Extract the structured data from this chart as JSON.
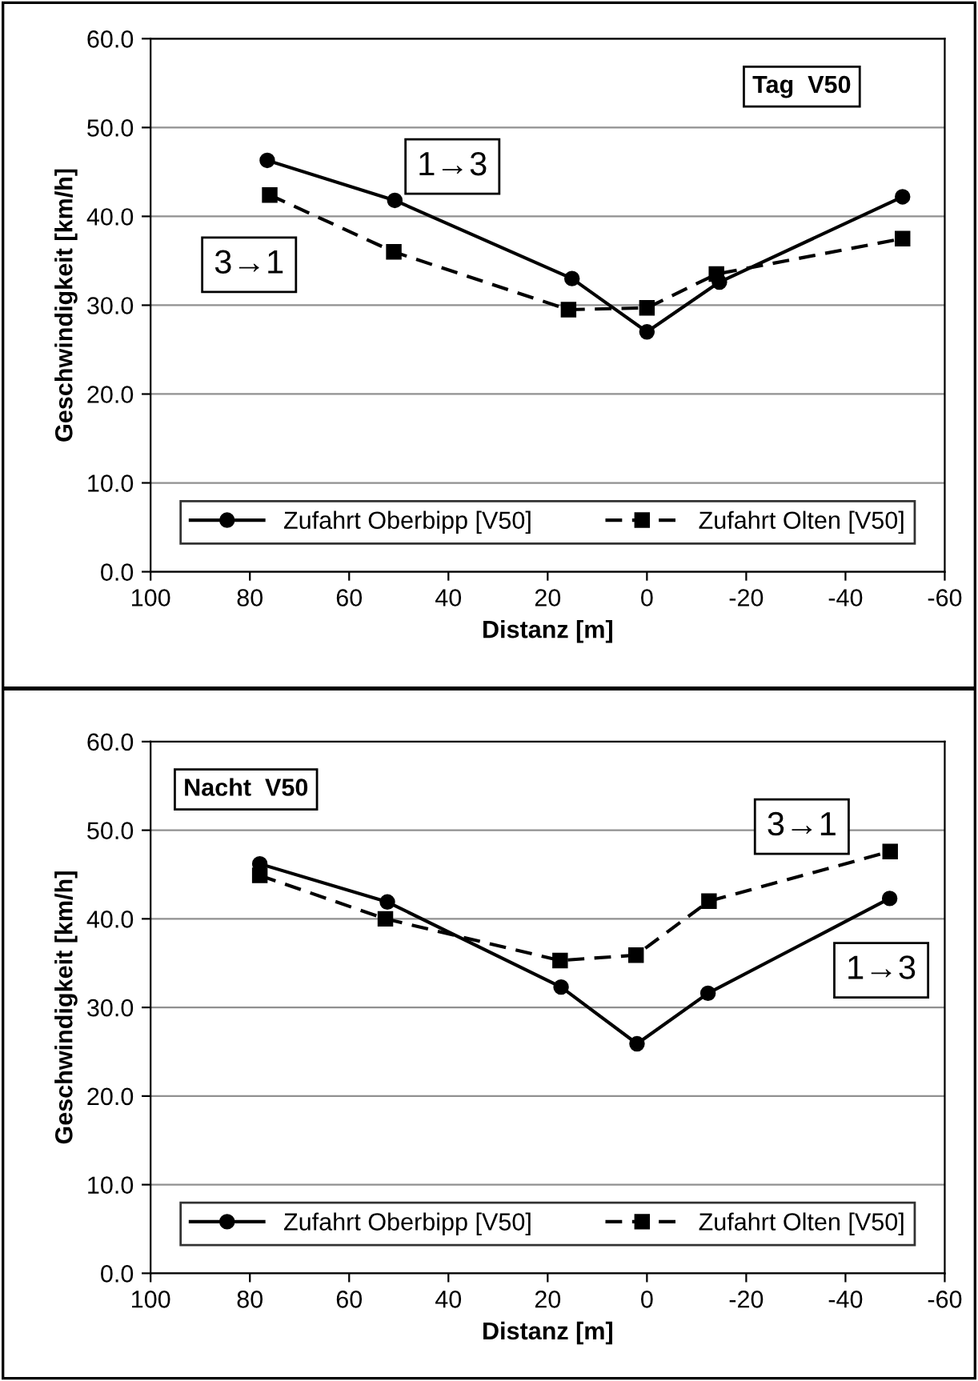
{
  "chart_data": [
    {
      "type": "line",
      "xlabel": "Distanz [m]",
      "ylabel": "Geschwindigkeit [km/h]",
      "xlim": [
        100,
        -60
      ],
      "xticks": [
        100,
        80,
        60,
        40,
        20,
        0,
        -20,
        -40,
        -60
      ],
      "ylim": [
        0,
        60
      ],
      "yticks": [
        {
          "value": 0,
          "label": "0.0"
        },
        {
          "value": 10,
          "label": "10.0"
        },
        {
          "value": 20,
          "label": "20.0"
        },
        {
          "value": 30,
          "label": "30.0"
        },
        {
          "value": 40,
          "label": "40.0"
        },
        {
          "value": 50,
          "label": "50.0"
        },
        {
          "value": 60,
          "label": "60.0"
        }
      ],
      "grid": "y",
      "legend": "bottom",
      "annotations": [
        "Tag  V50",
        "1→3",
        "3→1"
      ],
      "series": [
        {
          "name": "Zufahrt Oberbipp [V50]",
          "color": "#000000",
          "marker": "circle",
          "line_style": "solid",
          "x": [
            76.5,
            50.8,
            15.1,
            0,
            -14.6,
            -51.5
          ],
          "values": [
            46.3,
            41.8,
            33.0,
            27.0,
            32.6,
            42.2
          ]
        },
        {
          "name": "Zufahrt Olten [V50]",
          "color": "#000000",
          "marker": "square",
          "line_style": "dashed",
          "x": [
            76,
            51,
            15.8,
            0,
            -14,
            -51.5
          ],
          "values": [
            42.4,
            36.0,
            29.5,
            29.7,
            33.5,
            37.5
          ]
        }
      ]
    },
    {
      "type": "line",
      "xlabel": "Distanz [m]",
      "ylabel": "Geschwindigkeit [km/h]",
      "xlim": [
        100,
        -60
      ],
      "xticks": [
        100,
        80,
        60,
        40,
        20,
        0,
        -20,
        -40,
        -60
      ],
      "ylim": [
        0,
        60
      ],
      "yticks": [
        {
          "value": 0,
          "label": "0.0"
        },
        {
          "value": 10,
          "label": "10.0"
        },
        {
          "value": 20,
          "label": "20.0"
        },
        {
          "value": 30,
          "label": "30.0"
        },
        {
          "value": 40,
          "label": "40.0"
        },
        {
          "value": 50,
          "label": "50.0"
        },
        {
          "value": 60,
          "label": "60.0"
        }
      ],
      "grid": "y",
      "legend": "bottom",
      "annotations": [
        "Nacht  V50",
        "3→1",
        "1→3"
      ],
      "series": [
        {
          "name": "Zufahrt Oberbipp [V50]",
          "color": "#000000",
          "marker": "circle",
          "line_style": "solid",
          "x": [
            78,
            52.3,
            17.3,
            2,
            -12.3,
            -48.9
          ],
          "values": [
            46.2,
            41.9,
            32.3,
            25.9,
            31.6,
            42.3
          ]
        },
        {
          "name": "Zufahrt Olten [V50]",
          "color": "#000000",
          "marker": "square",
          "line_style": "dashed",
          "x": [
            78,
            52.7,
            17.5,
            2.2,
            -12.5,
            -49
          ],
          "values": [
            44.9,
            40.0,
            35.3,
            35.9,
            42.0,
            47.6
          ]
        }
      ]
    }
  ]
}
